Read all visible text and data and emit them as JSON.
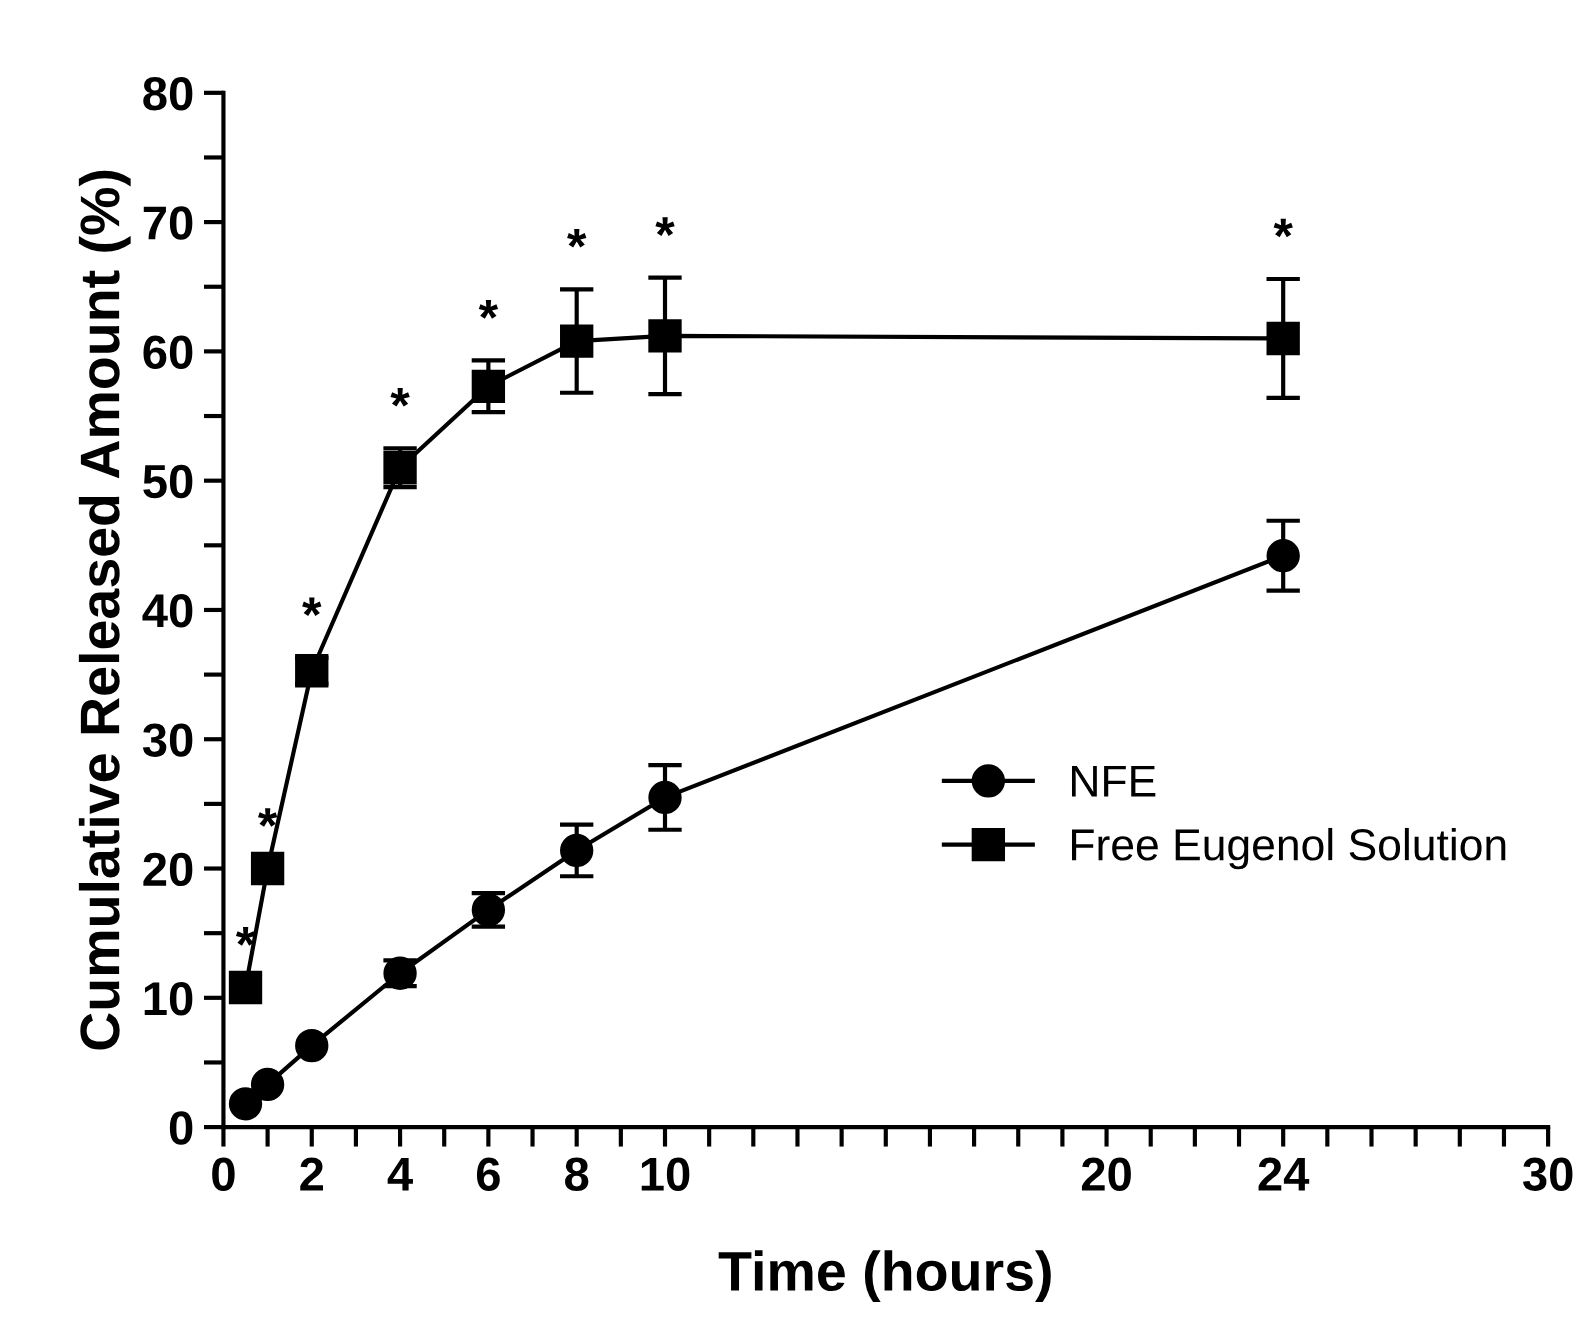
{
  "chart_data": {
    "type": "line",
    "xlabel": "Time (hours)",
    "ylabel": "Cumulative Released Amount (%)",
    "x": [
      0.5,
      1,
      2,
      4,
      6,
      8,
      10,
      24
    ],
    "series": [
      {
        "name": "NFE",
        "color": "#000000",
        "marker": "circle",
        "values": [
          1.8,
          3.3,
          6.3,
          11.9,
          16.8,
          21.4,
          25.5,
          44.2
        ],
        "errors": [
          null,
          null,
          null,
          1.0,
          1.3,
          2.0,
          2.5,
          2.7
        ]
      },
      {
        "name": "Free Eugenol Solution",
        "color": "#000000",
        "marker": "square",
        "values": [
          10.8,
          20.0,
          35.3,
          51.0,
          57.3,
          60.8,
          61.2,
          61.0
        ],
        "errors": [
          null,
          null,
          1.0,
          1.5,
          2.0,
          4.0,
          4.5,
          4.6
        ]
      }
    ],
    "annotations": [
      {
        "text": "*",
        "x": 0.5,
        "y": 10.8
      },
      {
        "text": "*",
        "x": 1,
        "y": 20.0
      },
      {
        "text": "*",
        "x": 2,
        "y": 35.3
      },
      {
        "text": "*",
        "x": 4,
        "y": 51.0
      },
      {
        "text": "*",
        "x": 6,
        "y": 57.3
      },
      {
        "text": "*",
        "x": 8,
        "y": 60.8
      },
      {
        "text": "*",
        "x": 10,
        "y": 61.2
      },
      {
        "text": "*",
        "x": 24,
        "y": 61.0
      }
    ],
    "xlim": [
      0,
      30
    ],
    "ylim": [
      0,
      80
    ],
    "xticks": [
      0,
      {
        "value": 1,
        "label": null
      },
      2,
      {
        "value": 3,
        "label": null
      },
      4,
      {
        "value": 5,
        "label": null
      },
      6,
      {
        "value": 7,
        "label": null
      },
      8,
      {
        "value": 9,
        "label": null
      },
      10,
      {
        "value": 11,
        "label": null
      },
      {
        "value": 12,
        "label": null
      },
      {
        "value": 13,
        "label": null
      },
      {
        "value": 14,
        "label": null
      },
      {
        "value": 15,
        "label": null
      },
      {
        "value": 16,
        "label": null
      },
      {
        "value": 17,
        "label": null
      },
      {
        "value": 18,
        "label": null
      },
      {
        "value": 19,
        "label": null
      },
      20,
      {
        "value": 21,
        "label": null
      },
      {
        "value": 22,
        "label": null
      },
      {
        "value": 23,
        "label": null
      },
      24,
      {
        "value": 25,
        "label": null
      },
      {
        "value": 26,
        "label": null
      },
      {
        "value": 27,
        "label": null
      },
      {
        "value": 28,
        "label": null
      },
      {
        "value": 29,
        "label": null
      },
      30
    ],
    "yticks": [
      0,
      {
        "value": 5,
        "label": null
      },
      10,
      {
        "value": 15,
        "label": null
      },
      20,
      {
        "value": 25,
        "label": null
      },
      30,
      {
        "value": 35,
        "label": null
      },
      40,
      {
        "value": 45,
        "label": null
      },
      50,
      {
        "value": 55,
        "label": null
      },
      60,
      {
        "value": 65,
        "label": null
      },
      70,
      {
        "value": 75,
        "label": null
      },
      80
    ],
    "grid": false,
    "legend": "right",
    "line_style": "solid"
  }
}
